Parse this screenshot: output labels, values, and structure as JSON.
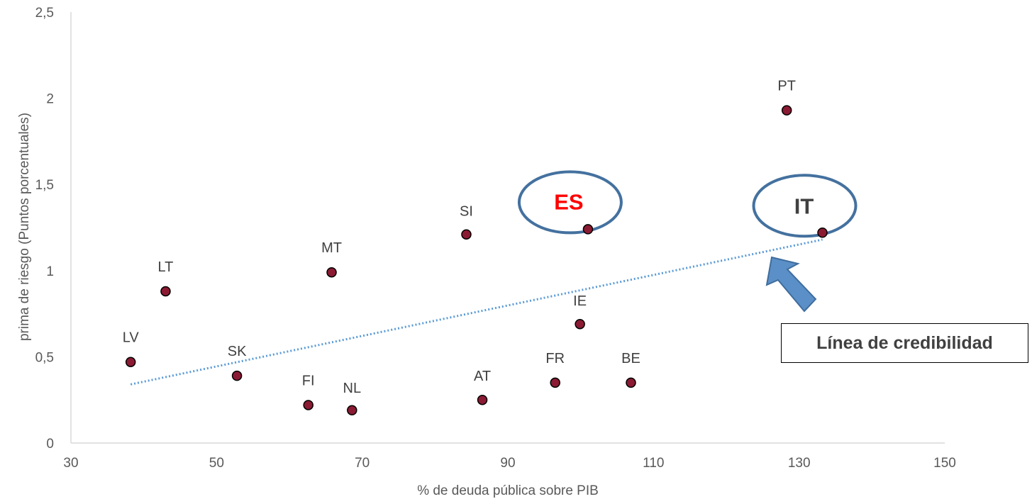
{
  "chart_data": {
    "type": "scatter",
    "xlabel": "% de deuda pública sobre PIB",
    "ylabel": "prima de riesgo (Puntos porcentuales)",
    "xlim": [
      30,
      150
    ],
    "ylim": [
      0,
      2.5
    ],
    "x_ticks": [
      "30",
      "50",
      "70",
      "90",
      "110",
      "130",
      "150"
    ],
    "y_ticks": [
      "0",
      "0,5",
      "1",
      "1,5",
      "2",
      "2,5"
    ],
    "points": [
      {
        "label": "LV",
        "x": 38.2,
        "y": 0.47
      },
      {
        "label": "LT",
        "x": 43.0,
        "y": 0.88
      },
      {
        "label": "SK",
        "x": 52.8,
        "y": 0.39
      },
      {
        "label": "FI",
        "x": 62.6,
        "y": 0.22
      },
      {
        "label": "MT",
        "x": 65.8,
        "y": 0.99
      },
      {
        "label": "NL",
        "x": 68.6,
        "y": 0.19
      },
      {
        "label": "SI",
        "x": 84.3,
        "y": 1.21
      },
      {
        "label": "AT",
        "x": 86.5,
        "y": 0.25
      },
      {
        "label": "FR",
        "x": 96.5,
        "y": 0.35
      },
      {
        "label": "IE",
        "x": 99.9,
        "y": 0.69
      },
      {
        "label": "ES",
        "x": 101.0,
        "y": 1.24
      },
      {
        "label": "BE",
        "x": 106.9,
        "y": 0.35
      },
      {
        "label": "PT",
        "x": 128.3,
        "y": 1.93
      },
      {
        "label": "IT",
        "x": 133.2,
        "y": 1.22
      }
    ],
    "trendline": {
      "x": [
        38.2,
        133.2
      ],
      "y": [
        0.34,
        1.18
      ]
    },
    "highlighted": [
      "ES",
      "IT"
    ],
    "grid": false,
    "legend": "none",
    "annotation": "Línea de credibilidad",
    "colors": {
      "point_fill": "#8b1a33",
      "trendline": "#5b9bd5",
      "highlight_ring": "#44719f",
      "arrow": "#5b8fc7",
      "es_label": "#ff0000"
    }
  }
}
